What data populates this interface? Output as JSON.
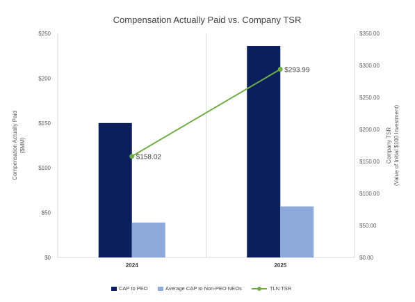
{
  "chart_data": {
    "type": "bar",
    "title": "Compensation Actually Paid vs. Company TSR",
    "categories": [
      "2024",
      "2025"
    ],
    "ylabel_left": [
      "Compensation Actually Paid",
      "($MM)"
    ],
    "ylabel_right": [
      "Company TSR",
      "(Value of Initial $100 Investment)"
    ],
    "ylim_left": [
      0,
      250
    ],
    "ylim_right": [
      0,
      350
    ],
    "yticks_left": [
      "$0",
      "$50",
      "$100",
      "$150",
      "$200",
      "$250"
    ],
    "yticks_right": [
      "$0.00",
      "$50.00",
      "$100.00",
      "$150.00",
      "$200.00",
      "$250.00",
      "$300.00",
      "$350.00"
    ],
    "series": [
      {
        "name": "CAP to PEO",
        "kind": "bar",
        "axis": "left",
        "color": "#0b1f5c",
        "values": [
          150,
          236
        ]
      },
      {
        "name": "Average CAP to Non-PEO NEOs",
        "kind": "bar",
        "axis": "left",
        "color": "#8eaadb",
        "values": [
          39,
          57
        ]
      },
      {
        "name": "TLN TSR",
        "kind": "line",
        "axis": "right",
        "color": "#70ad47",
        "values": [
          158.02,
          293.99
        ],
        "labels": [
          "$158.02",
          "$293.99"
        ]
      }
    ],
    "grid": "vertical-category-separators",
    "legend": "bottom"
  }
}
